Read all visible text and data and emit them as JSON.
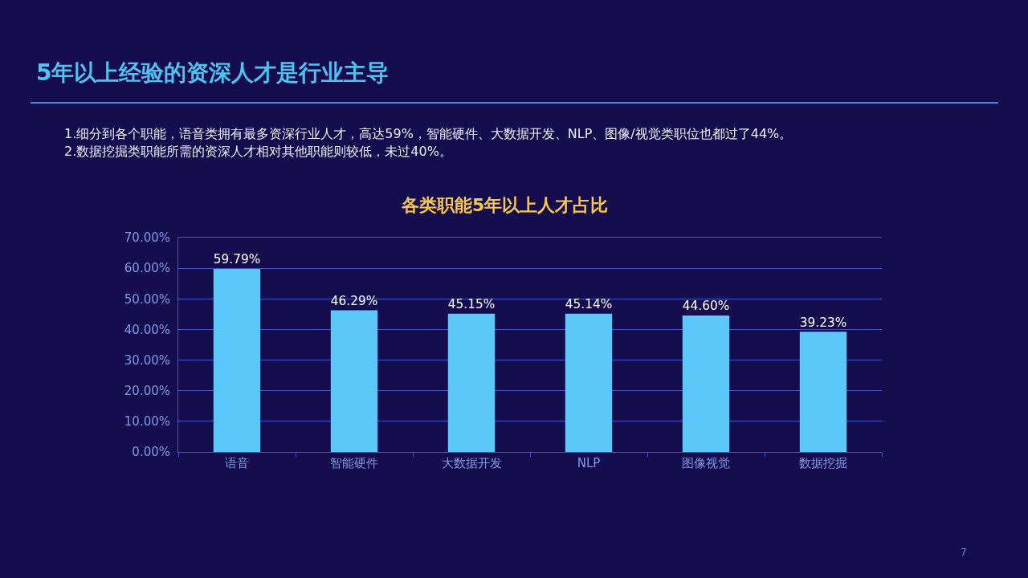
{
  "chart_data": {
    "type": "bar",
    "title": "5年以上经验的资深人才是行业主导",
    "subtitle": "各类职能5年以上人才占比",
    "annotations": [
      "1.细分到各个职能，语音类拥有最多资深行业人才，高达59%，智能硬件、大数据开发、NLP、图像/视觉类职位也都过了44%。",
      "2.数据挖掘类职能所需的资深人才相对其他职能则较低，未过40%。",
      "7"
    ],
    "categories": [
      "语音",
      "智能硬件",
      "大数据开发",
      "NLP",
      "图像视觉",
      "数据挖掘"
    ],
    "values": [
      59.79,
      46.29,
      45.15,
      45.14,
      44.6,
      39.23
    ],
    "value_labels": [
      "59.79%",
      "46.29%",
      "45.15%",
      "45.14%",
      "44.60%",
      "39.23%"
    ],
    "color": "#5cc8fa",
    "ylim": [
      0,
      70
    ],
    "yticks": [
      {
        "value": 0,
        "label": "0.00%"
      },
      {
        "value": 10,
        "label": "10.00%"
      },
      {
        "value": 20,
        "label": "20.00%"
      },
      {
        "value": 30,
        "label": "30.00%"
      },
      {
        "value": 40,
        "label": "40.00%"
      },
      {
        "value": 50,
        "label": "50.00%"
      },
      {
        "value": 60,
        "label": "60.00%"
      },
      {
        "value": 70,
        "label": "70.00%"
      }
    ],
    "grid": "y"
  }
}
